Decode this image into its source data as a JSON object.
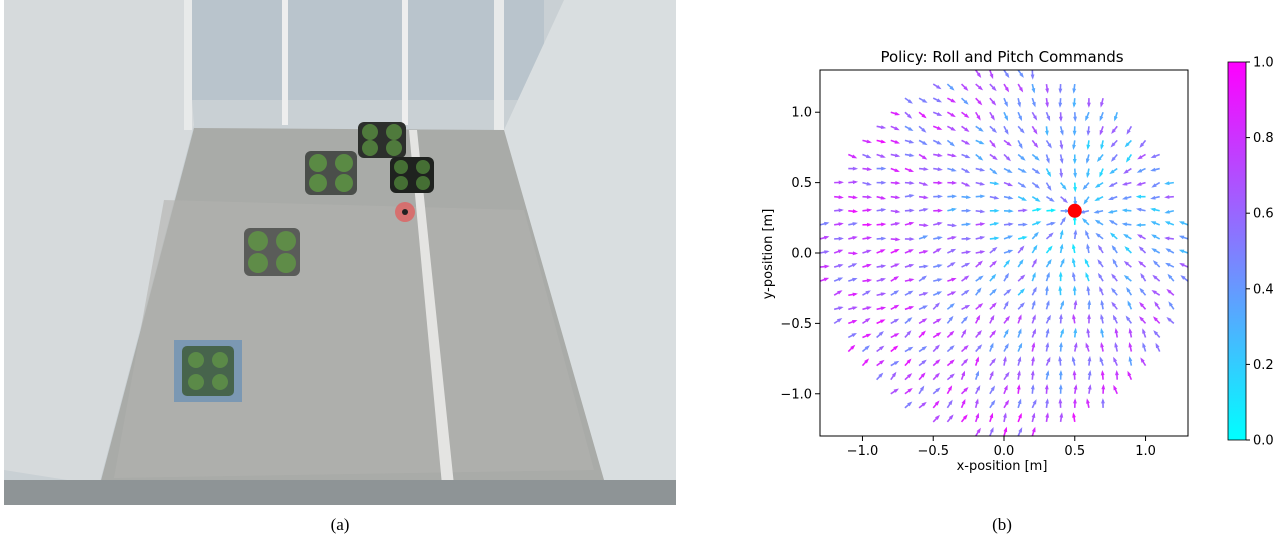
{
  "captions": {
    "a": "(a)",
    "b": "(b)"
  },
  "photo": {
    "description_icons": [
      "quadrotor-drone",
      "target-marker",
      "landing-pad"
    ]
  },
  "chart_data": {
    "type": "quiver",
    "title": "Policy: Roll and Pitch Commands",
    "xlabel": "x-position [m]",
    "ylabel": "y-position [m]",
    "xlim": [
      -1.3,
      1.3
    ],
    "ylim": [
      -1.3,
      1.3
    ],
    "xticks": [
      -1.0,
      -0.5,
      0.0,
      0.5,
      1.0
    ],
    "xtick_labels": [
      "−1.0",
      "−0.5",
      "0.0",
      "0.5",
      "1.0"
    ],
    "yticks": [
      -1.0,
      -0.5,
      0.0,
      0.5,
      1.0
    ],
    "ytick_labels": [
      "−1.0",
      "−0.5",
      "0.0",
      "0.5",
      "1.0"
    ],
    "target": {
      "x": 0.5,
      "y": 0.3,
      "color": "#ff0000"
    },
    "field_radius": 1.32,
    "grid_spacing": 0.1,
    "colorbar": {
      "min": 0.0,
      "max": 1.0,
      "ticks": [
        0.0,
        0.2,
        0.4,
        0.6,
        0.8,
        1.0
      ],
      "tick_labels": [
        "0.0",
        "0.2",
        "0.4",
        "0.6",
        "0.8",
        "1.0"
      ],
      "color_low": "#00ffff",
      "color_high": "#ff00ff"
    },
    "grid": false
  }
}
